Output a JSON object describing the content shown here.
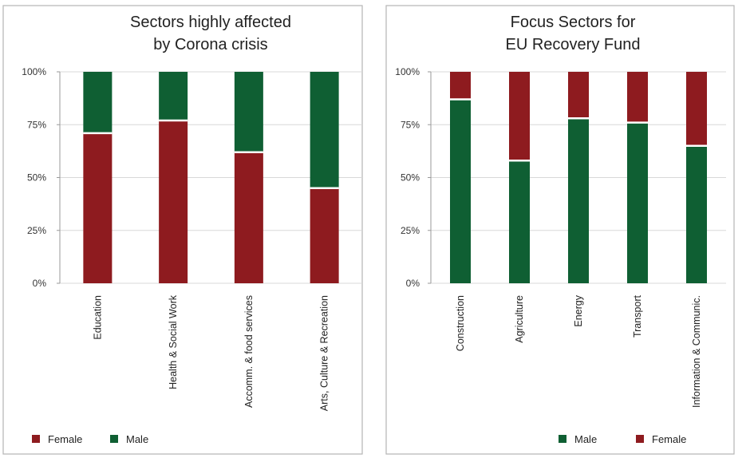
{
  "colors": {
    "female": "#8e1b1f",
    "male": "#0f5f33",
    "separator": "#ffffff"
  },
  "chart_data": [
    {
      "type": "bar",
      "stacked": true,
      "title_lines": [
        "Sectors highly affected",
        "by Corona crisis"
      ],
      "categories": [
        "Education",
        "Health & Social Work",
        "Accomm. & food services",
        "Arts, Culture & Recreation"
      ],
      "series": [
        {
          "name": "Female",
          "color_key": "female",
          "values": [
            71,
            77,
            62,
            45
          ]
        },
        {
          "name": "Male",
          "color_key": "male",
          "values": [
            29,
            23,
            38,
            55
          ]
        }
      ],
      "stack_order": [
        "Female",
        "Male"
      ],
      "yticks": [
        "0%",
        "25%",
        "50%",
        "75%",
        "100%"
      ],
      "ylim": [
        0,
        100
      ],
      "grid": true,
      "legend": {
        "position": "bottom-left",
        "entries": [
          {
            "label": "Female",
            "color_key": "female"
          },
          {
            "label": "Male",
            "color_key": "male"
          }
        ]
      }
    },
    {
      "type": "bar",
      "stacked": true,
      "title_lines": [
        "Focus Sectors for",
        "EU Recovery Fund"
      ],
      "categories": [
        "Construction",
        "Agriculture",
        "Energy",
        "Transport",
        "Information & Communic."
      ],
      "series": [
        {
          "name": "Male",
          "color_key": "male",
          "values": [
            87,
            58,
            78,
            76,
            65
          ]
        },
        {
          "name": "Female",
          "color_key": "female",
          "values": [
            13,
            42,
            22,
            24,
            35
          ]
        }
      ],
      "stack_order": [
        "Male",
        "Female"
      ],
      "yticks": [
        "0%",
        "25%",
        "50%",
        "75%",
        "100%"
      ],
      "ylim": [
        0,
        100
      ],
      "grid": true,
      "legend": {
        "position": "bottom-right",
        "entries": [
          {
            "label": "Male",
            "color_key": "male"
          },
          {
            "label": "Female",
            "color_key": "female"
          }
        ]
      }
    }
  ]
}
